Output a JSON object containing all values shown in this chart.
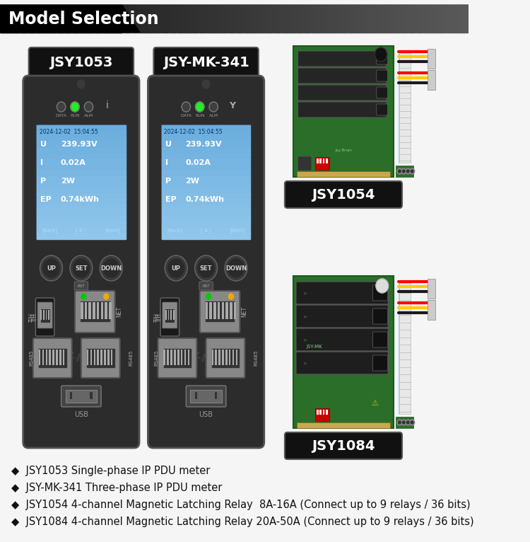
{
  "title": "Model Selection",
  "bg_color": "#f5f5f5",
  "header_text_color": "#ffffff",
  "bullet_lines": [
    "◆  JSY1053 Single-phase IP PDU meter",
    "◆  JSY-MK-341 Three-phase IP PDU meter",
    "◆  JSY1054 4-channel Magnetic Latching Relay  8A-16A (Connect up to 9 relays / 36 bits)",
    "◆  JSY1084 4-channel Magnetic Latching Relay 20A-50A (Connect up to 9 relays / 36 bits)"
  ],
  "model_labels": [
    "JSY1053",
    "JSY-MK-341",
    "JSY1054",
    "JSY1084"
  ],
  "label_bg": "#111111",
  "label_text": "#ffffff",
  "screen_bg": "#7ab8e8",
  "screen_lines": [
    "2024-12-02  15:04:55",
    "U    239.93V",
    "I    0.02A",
    "P    2W",
    "EP   0.74kWh"
  ],
  "device_body_color": "#2c2c2c",
  "button_color": "#3d3d3d",
  "led_green": "#22ee22",
  "led_off": "#404040",
  "pcb_green": "#2a6e2a",
  "relay_color": "#1a1a1a",
  "watermark_color": "#3e3e3e"
}
